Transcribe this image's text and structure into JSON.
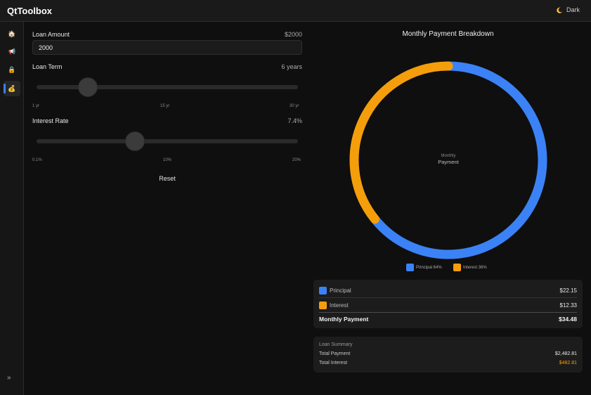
{
  "app": {
    "title": "QtToolbox",
    "theme_label": "Dark"
  },
  "sidebar": {
    "items": [
      {
        "name": "home-icon",
        "glyph": "🏠"
      },
      {
        "name": "megaphone-icon",
        "glyph": "📢"
      },
      {
        "name": "lock-icon",
        "glyph": "🔒"
      },
      {
        "name": "money-bag-icon",
        "glyph": "💰"
      }
    ],
    "expand_label": "»"
  },
  "form": {
    "loan_amount": {
      "label": "Loan Amount",
      "value_text": "$2000",
      "input_value": "2000"
    },
    "loan_term": {
      "label": "Loan Term",
      "value_text": "6 years",
      "min": 1,
      "max": 30,
      "value": 6,
      "ticks": [
        "1 yr",
        "15 yr",
        "30 yr"
      ]
    },
    "interest_rate": {
      "label": "Interest Rate",
      "value_text": "7.4%",
      "min": 0.1,
      "max": 20,
      "value": 7.4,
      "ticks": [
        "0.1%",
        "10%",
        "20%"
      ]
    },
    "reset_label": "Reset"
  },
  "chart": {
    "title": "Monthly Payment Breakdown",
    "center_small": "Monthly",
    "center_label": "Payment"
  },
  "chart_data": {
    "type": "pie",
    "title": "Monthly Payment Breakdown",
    "categories": [
      "Principal",
      "Interest"
    ],
    "values": [
      22.15,
      12.33
    ],
    "percent": [
      64,
      36
    ],
    "colors": [
      "#3b82f6",
      "#f59e0b"
    ],
    "legend": [
      "Principal 64%",
      "Interest 36%"
    ]
  },
  "breakdown": {
    "principal": {
      "label": "Principal",
      "value": "$22.15"
    },
    "interest": {
      "label": "Interest",
      "value": "$12.33"
    },
    "monthly": {
      "label": "Monthly Payment",
      "value": "$34.48"
    }
  },
  "summary": {
    "title": "Loan Summary",
    "total_payment": {
      "label": "Total Payment",
      "value": "$2,482.81"
    },
    "total_interest": {
      "label": "Total Interest",
      "value": "$482.81"
    }
  },
  "colors": {
    "accent": "#3b82f6",
    "principal": "#3b82f6",
    "interest": "#f59e0b"
  }
}
